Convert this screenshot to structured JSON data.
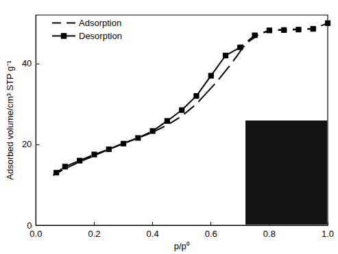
{
  "chart_data": {
    "type": "line",
    "x_label": "p/p⁰",
    "y_label": "Adsorbed volume/cm³ STP g⁻¹",
    "xlim": [
      0,
      1
    ],
    "ylim": [
      0,
      52
    ],
    "xticks": [
      {
        "value": 0,
        "label": "0.0"
      },
      {
        "value": 0.2,
        "label": "0.2"
      },
      {
        "value": 0.4,
        "label": "0.4"
      },
      {
        "value": 0.6,
        "label": "0.6"
      },
      {
        "value": 0.8,
        "label": "0.8"
      },
      {
        "value": 1,
        "label": "1.0"
      }
    ],
    "yticks": [
      0,
      20,
      40
    ],
    "grid": false,
    "legend": "upper left",
    "series": [
      {
        "name": "Adsorption",
        "color": "#000000",
        "marker": "open_circle",
        "line_style": "solid",
        "x": [
          0.05,
          0.1,
          0.15,
          0.2,
          0.25,
          0.3,
          0.35,
          0.4,
          0.45,
          0.5,
          0.55,
          0.62,
          0.67,
          0.72,
          0.77,
          0.82,
          0.87,
          0.92,
          0.97
        ],
        "values": [
          12,
          14,
          15.7,
          17.2,
          18.8,
          20.3,
          21.6,
          23,
          24.8,
          27,
          30,
          35.5,
          40,
          45,
          47.5,
          48.3,
          48.5,
          48.5,
          48.8
        ]
      },
      {
        "name": "Desorption",
        "color": "#000000",
        "marker": "filled_square",
        "line_style": "solid",
        "x": [
          1,
          0.95,
          0.9,
          0.85,
          0.8,
          0.75,
          0.7,
          0.65,
          0.6,
          0.55,
          0.5,
          0.45,
          0.4,
          0.35,
          0.3,
          0.25,
          0.2,
          0.15,
          0.1,
          0.07
        ],
        "values": [
          50,
          48.6,
          48.4,
          48.3,
          48.2,
          47,
          44,
          42,
          37,
          32,
          28.5,
          25.8,
          23.3,
          21.6,
          20.2,
          18.8,
          17.5,
          16,
          14.5,
          13
        ]
      }
    ]
  }
}
